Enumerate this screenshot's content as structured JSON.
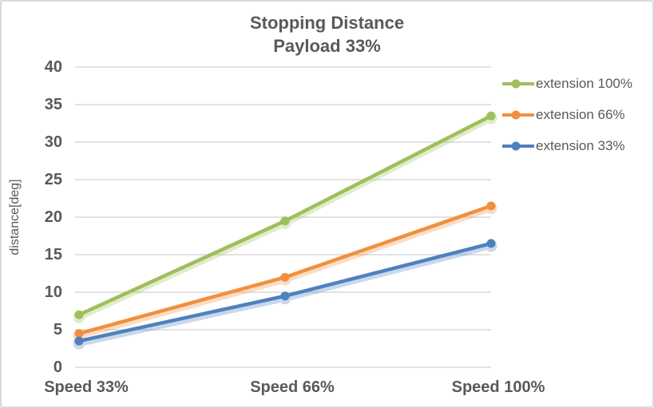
{
  "window": {
    "background": "#FFFFFF",
    "border_color": "#D9D9D9"
  },
  "chart_data": {
    "type": "line",
    "title": "Stopping Distance",
    "subtitle": "Payload 33%",
    "xlabel": "",
    "ylabel": "distance[deg]",
    "categories": [
      "Speed 33%",
      "Speed 66%",
      "Speed 100%"
    ],
    "series": [
      {
        "name": "extension 100%",
        "color": "#9EBF5B",
        "values": [
          7,
          19.5,
          33.5
        ]
      },
      {
        "name": "extension 66%",
        "color": "#F0903F",
        "values": [
          4.5,
          12,
          21.5
        ]
      },
      {
        "name": "extension 33%",
        "color": "#4E81BD",
        "values": [
          3.5,
          9.5,
          16.5
        ]
      }
    ],
    "ylim": [
      0,
      40
    ],
    "ytick_step": 5,
    "grid": "horizontal",
    "gridline_color": "#D9D9D9",
    "text_color": "#595959",
    "legend_position": "right",
    "marker": "circle"
  }
}
